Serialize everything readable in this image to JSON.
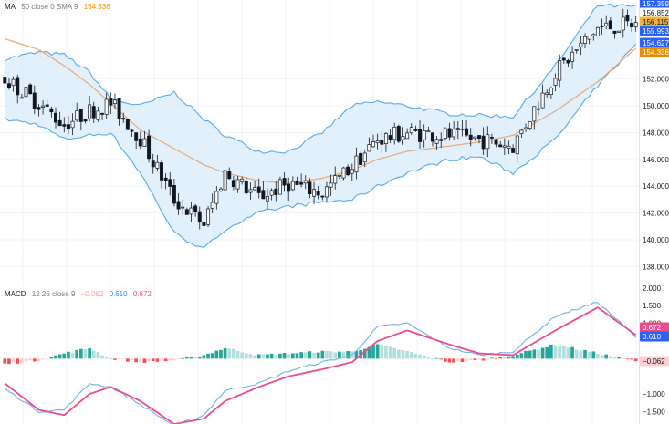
{
  "legends": {
    "price": {
      "name": "MA",
      "params": "50 close 0 SMA 9",
      "value": "154.336",
      "value_color": "#e58f00"
    },
    "macd": {
      "name": "MACD",
      "params": "12 26 close 9",
      "hist": "−0.062",
      "macd": "0.610",
      "signal": "0.672"
    }
  },
  "colors": {
    "up": "#ffffff",
    "down": "#131722",
    "bb_band": "#5aa9e6",
    "bb_fill": "#d7ebfa",
    "ma": "#e8a97a",
    "macd_line": "#6fb1e8",
    "signal_line": "#ec4b8c",
    "hist_pos_strong": "#26a69a",
    "hist_pos_weak": "#b2dfdb",
    "hist_neg_strong": "#ef5350",
    "hist_neg_weak": "#ffcdd2",
    "axis_text": "#131722"
  },
  "price_axis": {
    "ticks": [
      "138.000",
      "140.000",
      "142.000",
      "144.000",
      "146.000",
      "148.000",
      "150.000",
      "152.000"
    ],
    "range": [
      136.8,
      157.9
    ]
  },
  "price_labels": [
    {
      "value": "157.359",
      "bg": "#2962ff",
      "fg": "#ffffff"
    },
    {
      "value": "156.852",
      "bg": "#ffffff",
      "fg": "#131722"
    },
    {
      "value": "156.115",
      "bg": "#f0b43c",
      "fg": "#131722"
    },
    {
      "value": "155.993",
      "bg": "#2962ff",
      "fg": "#ffffff"
    },
    {
      "value": "154.627",
      "bg": "#2962ff",
      "fg": "#ffffff"
    },
    {
      "value": "154.336",
      "bg": "#e58f00",
      "fg": "#ffffff"
    }
  ],
  "macd_axis": {
    "ticks": [
      "2.000",
      "1.500",
      "1.000",
      "−1.000",
      "−1.500"
    ],
    "range": [
      -1.85,
      2.1
    ]
  },
  "macd_labels": [
    {
      "value": "0.672",
      "bg": "#ec4b8c",
      "fg": "#ffffff"
    },
    {
      "value": "0.610",
      "bg": "#2962ff",
      "fg": "#ffffff"
    },
    {
      "value": "−0.062",
      "bg": "#ffcdd2",
      "fg": "#131722"
    }
  ],
  "chart_data": {
    "type": "candlestick",
    "candles_count": 150,
    "close_path_x": [
      0,
      8,
      14,
      20,
      25,
      32,
      40,
      47,
      52,
      60,
      67,
      75,
      82,
      88,
      95,
      105,
      112,
      120,
      130,
      140,
      149
    ],
    "close_path_y": [
      152.0,
      150.2,
      148.6,
      149.6,
      150.2,
      147.6,
      143.0,
      141.2,
      145.0,
      143.2,
      144.2,
      143.5,
      145.5,
      147.5,
      148.0,
      147.8,
      147.5,
      147.0,
      152.5,
      155.8,
      156.1
    ],
    "bb_upper": [
      153.5,
      154.0,
      153.8,
      152.5,
      150.5,
      150.0,
      151.0,
      149.0,
      147.8,
      146.6,
      146.6,
      148.0,
      150.0,
      150.3,
      150.0,
      149.4,
      149.3,
      149.2,
      153.0,
      157.5,
      157.4
    ],
    "bb_lower": [
      149.0,
      148.6,
      147.5,
      147.8,
      148.0,
      145.0,
      140.5,
      139.3,
      140.8,
      142.0,
      142.5,
      142.8,
      143.0,
      144.0,
      145.0,
      146.0,
      146.2,
      145.0,
      147.5,
      151.5,
      154.6
    ],
    "ma": [
      155.0,
      154.2,
      153.0,
      151.6,
      150.2,
      148.2,
      146.8,
      145.6,
      145.0,
      144.4,
      144.2,
      144.6,
      145.2,
      146.0,
      146.6,
      147.0,
      147.3,
      147.8,
      149.6,
      151.8,
      154.3
    ],
    "macd_x": [
      0,
      8,
      14,
      20,
      25,
      32,
      40,
      47,
      52,
      60,
      67,
      75,
      82,
      88,
      95,
      105,
      112,
      120,
      130,
      140,
      149
    ],
    "macd": [
      -0.85,
      -1.5,
      -1.45,
      -0.7,
      -0.8,
      -1.3,
      -1.9,
      -1.6,
      -0.9,
      -0.7,
      -0.35,
      -0.1,
      0.1,
      0.9,
      1.0,
      0.3,
      0.1,
      0.2,
      1.2,
      1.6,
      0.61
    ],
    "signal": [
      -0.7,
      -1.45,
      -1.6,
      -1.0,
      -0.8,
      -1.2,
      -1.85,
      -1.7,
      -1.2,
      -0.8,
      -0.5,
      -0.3,
      -0.1,
      0.5,
      0.8,
      0.4,
      0.15,
      0.1,
      0.8,
      1.45,
      0.672
    ]
  }
}
